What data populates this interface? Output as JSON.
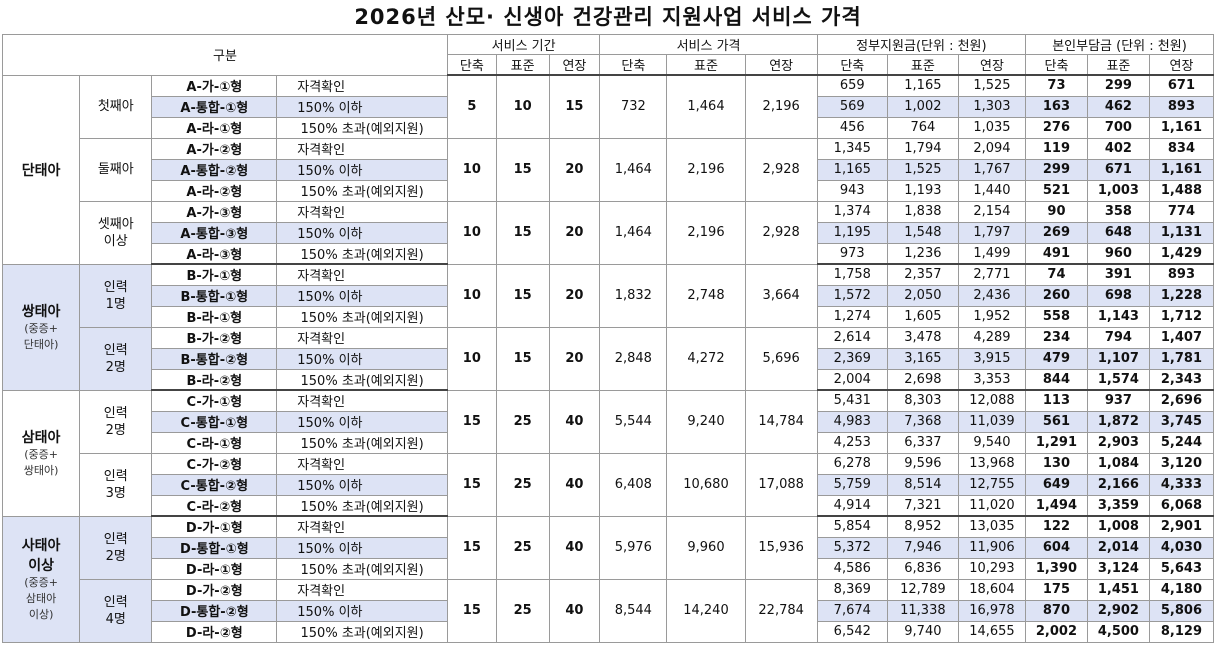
{
  "title": "2026년 산모· 신생아 건강관리 지원사업 서비스 가격",
  "header": {
    "gubun": "구분",
    "service_period": "서비스 기간",
    "service_price": "서비스 가격",
    "gov_support": "정부지원금(단위 : 천원)",
    "self_pay": "본인부담금 (단위 : 천원)",
    "sub_cols": [
      "단축",
      "표준",
      "연장"
    ]
  },
  "groups": [
    {
      "name_main": "단태아",
      "name_sub": "",
      "blocks": [
        {
          "label": "첫째아",
          "period": [
            "5",
            "10",
            "15"
          ],
          "price": [
            "732",
            "1,464",
            "2,196"
          ],
          "rows": [
            {
              "type": "A-가-①형",
              "criteria": "자격확인",
              "gov": [
                "659",
                "1,165",
                "1,525"
              ],
              "self": [
                "73",
                "299",
                "671"
              ]
            },
            {
              "type": "A-통합-①형",
              "criteria": "150% 이하",
              "gov": [
                "569",
                "1,002",
                "1,303"
              ],
              "self": [
                "163",
                "462",
                "893"
              ]
            },
            {
              "type": "A-라-①형",
              "criteria": "150% 초과(예외지원)",
              "gov": [
                "456",
                "764",
                "1,035"
              ],
              "self": [
                "276",
                "700",
                "1,161"
              ]
            }
          ]
        },
        {
          "label": "둘째아",
          "period": [
            "10",
            "15",
            "20"
          ],
          "price": [
            "1,464",
            "2,196",
            "2,928"
          ],
          "rows": [
            {
              "type": "A-가-②형",
              "criteria": "자격확인",
              "gov": [
                "1,345",
                "1,794",
                "2,094"
              ],
              "self": [
                "119",
                "402",
                "834"
              ]
            },
            {
              "type": "A-통합-②형",
              "criteria": "150% 이하",
              "gov": [
                "1,165",
                "1,525",
                "1,767"
              ],
              "self": [
                "299",
                "671",
                "1,161"
              ]
            },
            {
              "type": "A-라-②형",
              "criteria": "150% 초과(예외지원)",
              "gov": [
                "943",
                "1,193",
                "1,440"
              ],
              "self": [
                "521",
                "1,003",
                "1,488"
              ]
            }
          ]
        },
        {
          "label": "셋째아\n이상",
          "period": [
            "10",
            "15",
            "20"
          ],
          "price": [
            "1,464",
            "2,196",
            "2,928"
          ],
          "rows": [
            {
              "type": "A-가-③형",
              "criteria": "자격확인",
              "gov": [
                "1,374",
                "1,838",
                "2,154"
              ],
              "self": [
                "90",
                "358",
                "774"
              ]
            },
            {
              "type": "A-통합-③형",
              "criteria": "150% 이하",
              "gov": [
                "1,195",
                "1,548",
                "1,797"
              ],
              "self": [
                "269",
                "648",
                "1,131"
              ]
            },
            {
              "type": "A-라-③형",
              "criteria": "150% 초과(예외지원)",
              "gov": [
                "973",
                "1,236",
                "1,499"
              ],
              "self": [
                "491",
                "960",
                "1,429"
              ]
            }
          ]
        }
      ]
    },
    {
      "name_main": "쌍태아",
      "name_sub": "(중증+\n단태아)",
      "blocks": [
        {
          "label": "인력\n1명",
          "period": [
            "10",
            "15",
            "20"
          ],
          "price": [
            "1,832",
            "2,748",
            "3,664"
          ],
          "rows": [
            {
              "type": "B-가-①형",
              "criteria": "자격확인",
              "gov": [
                "1,758",
                "2,357",
                "2,771"
              ],
              "self": [
                "74",
                "391",
                "893"
              ]
            },
            {
              "type": "B-통합-①형",
              "criteria": "150% 이하",
              "gov": [
                "1,572",
                "2,050",
                "2,436"
              ],
              "self": [
                "260",
                "698",
                "1,228"
              ]
            },
            {
              "type": "B-라-①형",
              "criteria": "150% 초과(예외지원)",
              "gov": [
                "1,274",
                "1,605",
                "1,952"
              ],
              "self": [
                "558",
                "1,143",
                "1,712"
              ]
            }
          ]
        },
        {
          "label": "인력\n2명",
          "period": [
            "10",
            "15",
            "20"
          ],
          "price": [
            "2,848",
            "4,272",
            "5,696"
          ],
          "rows": [
            {
              "type": "B-가-②형",
              "criteria": "자격확인",
              "gov": [
                "2,614",
                "3,478",
                "4,289"
              ],
              "self": [
                "234",
                "794",
                "1,407"
              ]
            },
            {
              "type": "B-통합-②형",
              "criteria": "150% 이하",
              "gov": [
                "2,369",
                "3,165",
                "3,915"
              ],
              "self": [
                "479",
                "1,107",
                "1,781"
              ]
            },
            {
              "type": "B-라-②형",
              "criteria": "150% 초과(예외지원)",
              "gov": [
                "2,004",
                "2,698",
                "3,353"
              ],
              "self": [
                "844",
                "1,574",
                "2,343"
              ]
            }
          ]
        }
      ]
    },
    {
      "name_main": "삼태아",
      "name_sub": "(중증+\n쌍태아)",
      "blocks": [
        {
          "label": "인력\n2명",
          "period": [
            "15",
            "25",
            "40"
          ],
          "price": [
            "5,544",
            "9,240",
            "14,784"
          ],
          "rows": [
            {
              "type": "C-가-①형",
              "criteria": "자격확인",
              "gov": [
                "5,431",
                "8,303",
                "12,088"
              ],
              "self": [
                "113",
                "937",
                "2,696"
              ]
            },
            {
              "type": "C-통합-①형",
              "criteria": "150% 이하",
              "gov": [
                "4,983",
                "7,368",
                "11,039"
              ],
              "self": [
                "561",
                "1,872",
                "3,745"
              ]
            },
            {
              "type": "C-라-①형",
              "criteria": "150% 초과(예외지원)",
              "gov": [
                "4,253",
                "6,337",
                "9,540"
              ],
              "self": [
                "1,291",
                "2,903",
                "5,244"
              ]
            }
          ]
        },
        {
          "label": "인력\n3명",
          "period": [
            "15",
            "25",
            "40"
          ],
          "price": [
            "6,408",
            "10,680",
            "17,088"
          ],
          "rows": [
            {
              "type": "C-가-②형",
              "criteria": "자격확인",
              "gov": [
                "6,278",
                "9,596",
                "13,968"
              ],
              "self": [
                "130",
                "1,084",
                "3,120"
              ]
            },
            {
              "type": "C-통합-②형",
              "criteria": "150% 이하",
              "gov": [
                "5,759",
                "8,514",
                "12,755"
              ],
              "self": [
                "649",
                "2,166",
                "4,333"
              ]
            },
            {
              "type": "C-라-②형",
              "criteria": "150% 초과(예외지원)",
              "gov": [
                "4,914",
                "7,321",
                "11,020"
              ],
              "self": [
                "1,494",
                "3,359",
                "6,068"
              ]
            }
          ]
        }
      ]
    },
    {
      "name_main": "사태아\n이상",
      "name_sub": "(중증+\n삼태아\n이상)",
      "blocks": [
        {
          "label": "인력\n2명",
          "period": [
            "15",
            "25",
            "40"
          ],
          "price": [
            "5,976",
            "9,960",
            "15,936"
          ],
          "rows": [
            {
              "type": "D-가-①형",
              "criteria": "자격확인",
              "gov": [
                "5,854",
                "8,952",
                "13,035"
              ],
              "self": [
                "122",
                "1,008",
                "2,901"
              ]
            },
            {
              "type": "D-통합-①형",
              "criteria": "150% 이하",
              "gov": [
                "5,372",
                "7,946",
                "11,906"
              ],
              "self": [
                "604",
                "2,014",
                "4,030"
              ]
            },
            {
              "type": "D-라-①형",
              "criteria": "150% 초과(예외지원)",
              "gov": [
                "4,586",
                "6,836",
                "10,293"
              ],
              "self": [
                "1,390",
                "3,124",
                "5,643"
              ]
            }
          ]
        },
        {
          "label": "인력\n4명",
          "period": [
            "15",
            "25",
            "40"
          ],
          "price": [
            "8,544",
            "14,240",
            "22,784"
          ],
          "rows": [
            {
              "type": "D-가-②형",
              "criteria": "자격확인",
              "gov": [
                "8,369",
                "12,789",
                "18,604"
              ],
              "self": [
                "175",
                "1,451",
                "4,180"
              ]
            },
            {
              "type": "D-통합-②형",
              "criteria": "150% 이하",
              "gov": [
                "7,674",
                "11,338",
                "16,978"
              ],
              "self": [
                "870",
                "2,902",
                "5,806"
              ]
            },
            {
              "type": "D-라-②형",
              "criteria": "150% 초과(예외지원)",
              "gov": [
                "6,542",
                "9,740",
                "14,655"
              ],
              "self": [
                "2,002",
                "4,500",
                "8,129"
              ]
            }
          ]
        }
      ]
    }
  ]
}
